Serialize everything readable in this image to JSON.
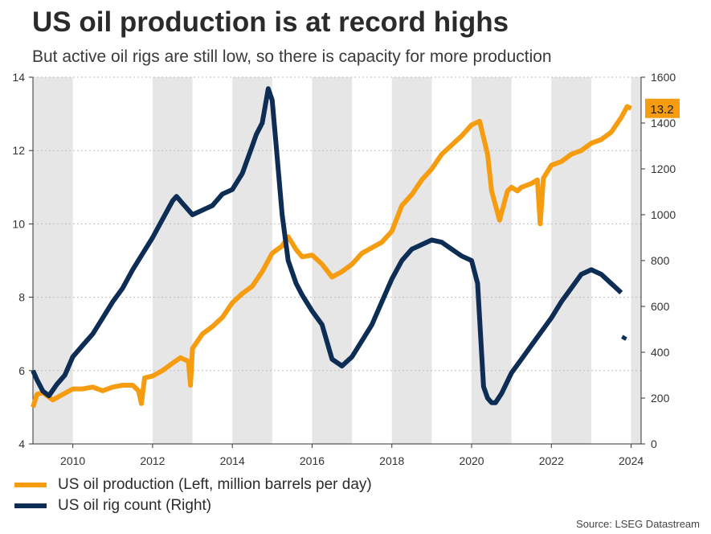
{
  "header": {
    "title": "US oil production is at record highs",
    "subtitle": "But active oil rigs are still low, so there is capacity for more production"
  },
  "colors": {
    "production": "#f59c10",
    "rigs": "#0d2d55",
    "shade": "#e6e6e6",
    "grid": "#bdbdbd"
  },
  "legend": [
    {
      "label": "US oil production (Left, million barrels per day)",
      "color": "#f59c10"
    },
    {
      "label": "US oil rig count (Right)",
      "color": "#0d2d55"
    }
  ],
  "source": "Source: LSEG Datastream",
  "chart_data": {
    "type": "line",
    "title": "US oil production is at record highs",
    "subtitle": "But active oil rigs are still low, so there is capacity for more production",
    "x_range": [
      2009.0,
      2024.25
    ],
    "x_ticks": [
      2010,
      2012,
      2014,
      2016,
      2018,
      2020,
      2022,
      2024
    ],
    "x_tick_labels": [
      "2010",
      "2012",
      "2014",
      "2016",
      "2018",
      "2020",
      "2022",
      "2024"
    ],
    "y_left": {
      "range": [
        4,
        14
      ],
      "ticks": [
        4,
        6,
        8,
        10,
        12,
        14
      ],
      "tick_labels": [
        "4",
        "6",
        "8",
        "10",
        "12",
        "14"
      ]
    },
    "y_right": {
      "range": [
        0,
        1600
      ],
      "ticks": [
        0,
        200,
        400,
        600,
        800,
        1000,
        1200,
        1400,
        1600
      ],
      "tick_labels": [
        "0",
        "200",
        "400",
        "600",
        "800",
        "1000",
        "1200",
        "1400",
        "1600"
      ]
    },
    "shaded_year_bands": [
      [
        2009,
        2010
      ],
      [
        2012,
        2013
      ],
      [
        2014,
        2015
      ],
      [
        2016,
        2017
      ],
      [
        2018,
        2019
      ],
      [
        2020,
        2021
      ],
      [
        2022,
        2023
      ],
      [
        2024,
        2024.25
      ]
    ],
    "grid": "horizontal dotted",
    "legend_position": "bottom-left",
    "end_label": "13.2",
    "series": [
      {
        "name": "US oil production (Left, million barrels per day)",
        "axis": "left",
        "x": [
          2009.0,
          2009.1,
          2009.25,
          2009.5,
          2009.75,
          2010.0,
          2010.25,
          2010.5,
          2010.75,
          2011.0,
          2011.25,
          2011.5,
          2011.65,
          2011.72,
          2011.8,
          2012.0,
          2012.25,
          2012.5,
          2012.7,
          2012.9,
          2012.95,
          2013.0,
          2013.25,
          2013.5,
          2013.75,
          2014.0,
          2014.25,
          2014.5,
          2014.75,
          2015.0,
          2015.25,
          2015.4,
          2015.6,
          2015.75,
          2016.0,
          2016.25,
          2016.5,
          2016.75,
          2017.0,
          2017.25,
          2017.5,
          2017.75,
          2018.0,
          2018.25,
          2018.5,
          2018.75,
          2019.0,
          2019.25,
          2019.5,
          2019.75,
          2020.0,
          2020.2,
          2020.4,
          2020.5,
          2020.7,
          2020.9,
          2021.0,
          2021.15,
          2021.25,
          2021.5,
          2021.65,
          2021.72,
          2021.8,
          2022.0,
          2022.25,
          2022.5,
          2022.75,
          2023.0,
          2023.25,
          2023.5,
          2023.75,
          2023.9,
          2024.0
        ],
        "y": [
          5.0,
          5.35,
          5.4,
          5.2,
          5.35,
          5.5,
          5.5,
          5.55,
          5.45,
          5.55,
          5.6,
          5.6,
          5.45,
          5.1,
          5.8,
          5.85,
          6.0,
          6.2,
          6.35,
          6.25,
          5.6,
          6.6,
          7.0,
          7.2,
          7.45,
          7.85,
          8.1,
          8.3,
          8.7,
          9.2,
          9.4,
          9.65,
          9.3,
          9.1,
          9.15,
          8.9,
          8.55,
          8.7,
          8.9,
          9.2,
          9.35,
          9.5,
          9.8,
          10.5,
          10.8,
          11.2,
          11.5,
          11.9,
          12.15,
          12.4,
          12.7,
          12.8,
          11.9,
          10.9,
          10.1,
          10.9,
          11.0,
          10.9,
          11.0,
          11.1,
          11.2,
          10.0,
          11.25,
          11.6,
          11.7,
          11.9,
          12.0,
          12.2,
          12.3,
          12.5,
          12.9,
          13.2,
          13.15
        ]
      },
      {
        "name": "US oil rig count (Right)",
        "axis": "right",
        "x": [
          2009.0,
          2009.1,
          2009.25,
          2009.4,
          2009.6,
          2009.8,
          2010.0,
          2010.25,
          2010.5,
          2010.75,
          2011.0,
          2011.25,
          2011.5,
          2011.75,
          2012.0,
          2012.25,
          2012.5,
          2012.6,
          2012.75,
          2013.0,
          2013.25,
          2013.5,
          2013.75,
          2014.0,
          2014.25,
          2014.5,
          2014.6,
          2014.75,
          2014.9,
          2015.0,
          2015.1,
          2015.25,
          2015.4,
          2015.6,
          2015.75,
          2016.0,
          2016.25,
          2016.4,
          2016.5,
          2016.75,
          2017.0,
          2017.25,
          2017.5,
          2017.75,
          2018.0,
          2018.25,
          2018.5,
          2018.75,
          2019.0,
          2019.25,
          2019.5,
          2019.75,
          2020.0,
          2020.15,
          2020.25,
          2020.3,
          2020.4,
          2020.5,
          2020.6,
          2020.75,
          2021.0,
          2021.25,
          2021.5,
          2021.75,
          2022.0,
          2022.25,
          2022.5,
          2022.75,
          2023.0,
          2023.25,
          2023.5,
          2023.75
        ],
        "y": [
          320,
          280,
          230,
          210,
          260,
          300,
          380,
          430,
          480,
          550,
          620,
          680,
          760,
          830,
          900,
          980,
          1060,
          1080,
          1050,
          1000,
          1020,
          1040,
          1090,
          1110,
          1180,
          1300,
          1350,
          1400,
          1550,
          1500,
          1300,
          1000,
          800,
          700,
          650,
          580,
          520,
          430,
          370,
          340,
          380,
          450,
          520,
          620,
          720,
          800,
          850,
          870,
          890,
          880,
          850,
          820,
          800,
          700,
          400,
          250,
          200,
          180,
          180,
          220,
          310,
          370,
          430,
          490,
          550,
          620,
          680,
          740,
          760,
          740,
          700,
          660
        ]
      },
      {
        "name": "US oil rig count (Right) latest",
        "axis": "right",
        "x": [
          2023.8,
          2023.85
        ],
        "y": [
          455,
          470
        ]
      }
    ]
  }
}
